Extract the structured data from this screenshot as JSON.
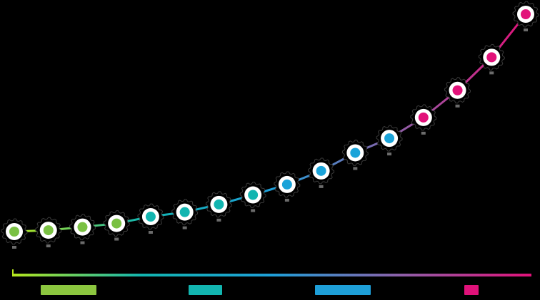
{
  "chart_data": {
    "type": "line",
    "title": "",
    "xlabel": "",
    "ylabel": "",
    "grid": false,
    "legend_position": "bottom",
    "x": [
      1,
      2,
      3,
      4,
      5,
      6,
      7,
      8,
      9,
      10,
      11,
      12,
      13,
      14,
      15,
      16
    ],
    "series": [
      {
        "values": [
          0.0,
          0.3,
          1.0,
          1.8,
          3.3,
          4.3,
          6.0,
          8.1,
          10.4,
          13.4,
          17.4,
          20.6,
          25.2,
          31.2,
          38.5,
          48.0
        ],
        "point_groups": [
          0,
          0,
          0,
          0,
          1,
          1,
          1,
          1,
          2,
          2,
          2,
          2,
          3,
          3,
          3,
          3
        ]
      }
    ],
    "groups": [
      {
        "color": "#7ac143",
        "legend_color": "#8cc63f"
      },
      {
        "color": "#12b5b0",
        "legend_color": "#12b5b0"
      },
      {
        "color": "#1aa3d9",
        "legend_color": "#1e9fd8"
      },
      {
        "color": "#e2127a",
        "legend_color": "#e0127a"
      }
    ],
    "axis_gradient": [
      "#b5e61d",
      "#12b5b0",
      "#1e9fd8",
      "#8e5fa8",
      "#e2127a"
    ],
    "ylim": [
      0,
      48
    ]
  }
}
